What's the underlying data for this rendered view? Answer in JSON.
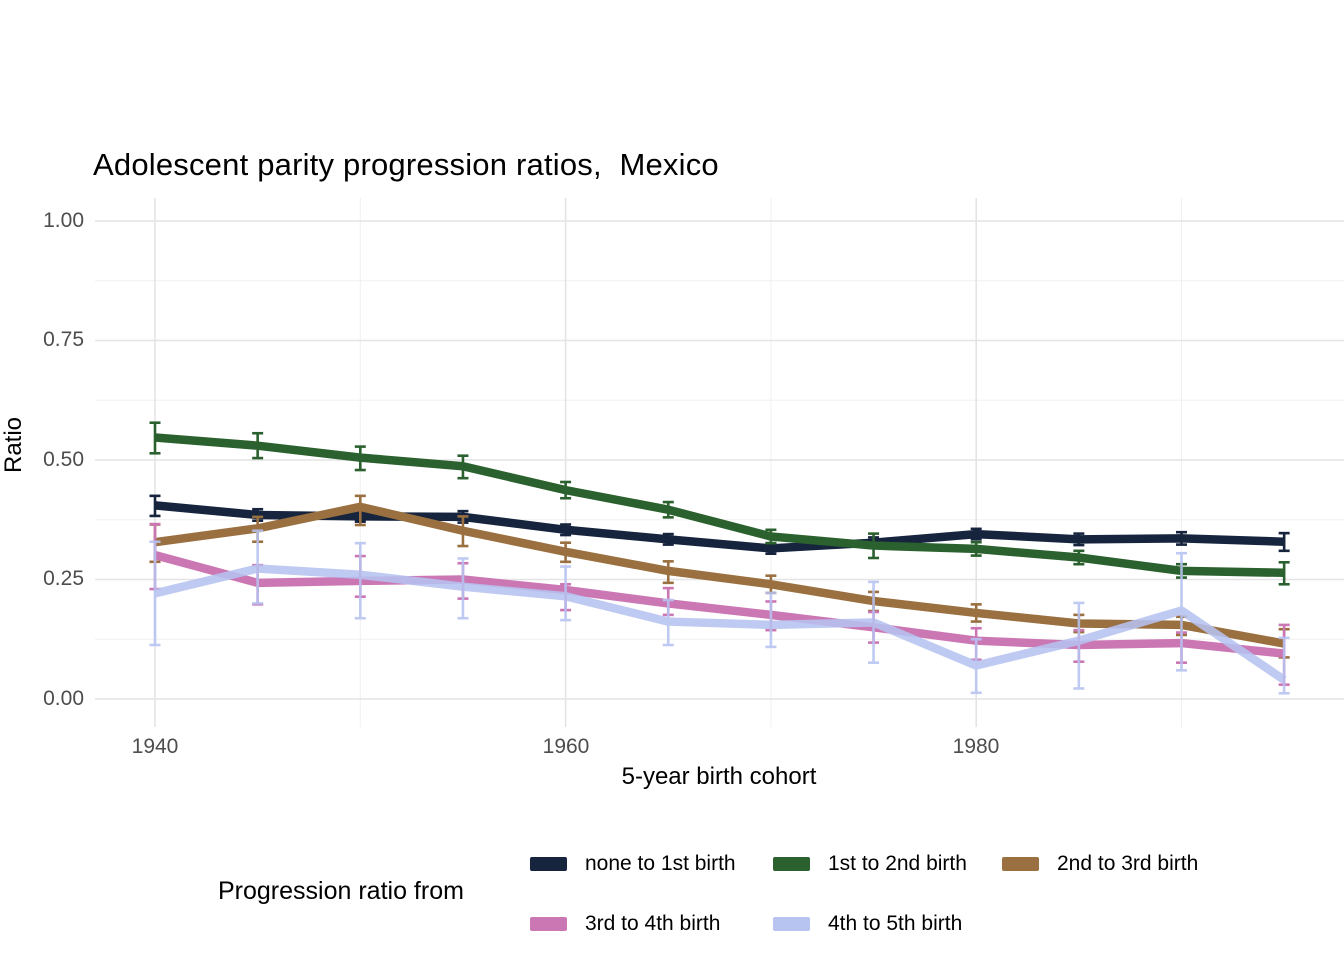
{
  "title": "Adolescent parity progression ratios,  Mexico",
  "y_axis": {
    "label": "Ratio",
    "ticks": [
      "1.00",
      "0.75",
      "0.50",
      "0.25",
      "0.00"
    ]
  },
  "x_axis": {
    "label": "5-year birth cohort",
    "ticks": [
      "1940",
      "1960",
      "1980"
    ]
  },
  "legend": {
    "title": "Progression ratio from",
    "items": [
      {
        "label": "none to 1st birth",
        "color": "#16243e"
      },
      {
        "label": "1st to 2nd birth",
        "color": "#2b612e"
      },
      {
        "label": "2nd to 3rd birth",
        "color": "#9a7040"
      },
      {
        "label": "3rd to 4th birth",
        "color": "#cb77b4"
      },
      {
        "label": "4th to 5th birth",
        "color": "#b7c3f1"
      }
    ]
  },
  "chart_data": {
    "type": "line",
    "title": "Adolescent parity progression ratios,  Mexico",
    "xlabel": "5-year birth cohort",
    "ylabel": "Ratio",
    "x": [
      1940,
      1945,
      1950,
      1955,
      1960,
      1965,
      1970,
      1975,
      1980,
      1985,
      1990,
      1995
    ],
    "xlim": [
      1937,
      1998
    ],
    "ylim": [
      0,
      1
    ],
    "y_major_ticks": [
      0,
      0.25,
      0.5,
      0.75,
      1.0
    ],
    "y_minor_ticks": [
      0.125,
      0.375,
      0.625,
      0.875
    ],
    "x_major_ticks": [
      1940,
      1960,
      1980
    ],
    "x_minor_ticks": [
      1950,
      1970,
      1990
    ],
    "grid": true,
    "error_bars": true,
    "legend_position": "bottom",
    "series": [
      {
        "name": "none to 1st birth",
        "color": "#16243e",
        "opacity": 1,
        "values": [
          0.405,
          0.385,
          0.382,
          0.381,
          0.354,
          0.334,
          0.315,
          0.327,
          0.345,
          0.334,
          0.336,
          0.329
        ],
        "ci_low": [
          0.383,
          0.373,
          0.371,
          0.369,
          0.343,
          0.323,
          0.304,
          0.316,
          0.334,
          0.322,
          0.323,
          0.31
        ],
        "ci_high": [
          0.425,
          0.397,
          0.393,
          0.393,
          0.365,
          0.345,
          0.326,
          0.338,
          0.356,
          0.346,
          0.349,
          0.347
        ]
      },
      {
        "name": "1st to 2nd birth",
        "color": "#2b612e",
        "opacity": 1,
        "values": [
          0.547,
          0.53,
          0.505,
          0.487,
          0.437,
          0.396,
          0.34,
          0.321,
          0.314,
          0.296,
          0.268,
          0.264
        ],
        "ci_low": [
          0.514,
          0.504,
          0.479,
          0.462,
          0.42,
          0.38,
          0.326,
          0.295,
          0.3,
          0.282,
          0.254,
          0.24
        ],
        "ci_high": [
          0.578,
          0.556,
          0.528,
          0.509,
          0.454,
          0.412,
          0.354,
          0.346,
          0.328,
          0.31,
          0.282,
          0.286
        ]
      },
      {
        "name": "2nd to 3rd birth",
        "color": "#9a7040",
        "opacity": 1,
        "values": [
          0.328,
          0.357,
          0.402,
          0.352,
          0.308,
          0.268,
          0.24,
          0.205,
          0.18,
          0.158,
          0.155,
          0.116
        ],
        "ci_low": [
          0.287,
          0.329,
          0.364,
          0.32,
          0.287,
          0.243,
          0.222,
          0.184,
          0.162,
          0.14,
          0.134,
          0.087
        ],
        "ci_high": [
          0.365,
          0.381,
          0.425,
          0.382,
          0.327,
          0.288,
          0.258,
          0.224,
          0.198,
          0.176,
          0.172,
          0.146
        ]
      },
      {
        "name": "3rd to 4th birth",
        "color": "#cb77b4",
        "opacity": 1,
        "values": [
          0.301,
          0.243,
          0.247,
          0.25,
          0.228,
          0.2,
          0.176,
          0.15,
          0.122,
          0.113,
          0.117,
          0.095
        ],
        "ci_low": [
          0.23,
          0.198,
          0.214,
          0.21,
          0.186,
          0.176,
          0.144,
          0.118,
          0.082,
          0.078,
          0.076,
          0.03
        ],
        "ci_high": [
          0.366,
          0.28,
          0.299,
          0.284,
          0.24,
          0.232,
          0.204,
          0.182,
          0.148,
          0.144,
          0.139,
          0.155
        ]
      },
      {
        "name": "4th to 5th birth",
        "color": "#b7c3f1",
        "opacity": 0.88,
        "values": [
          0.221,
          0.273,
          0.26,
          0.235,
          0.215,
          0.162,
          0.155,
          0.16,
          0.07,
          0.122,
          0.185,
          0.04
        ],
        "ci_low": [
          0.113,
          0.2,
          0.169,
          0.169,
          0.165,
          0.113,
          0.109,
          0.076,
          0.013,
          0.022,
          0.06,
          0.012
        ],
        "ci_high": [
          0.329,
          0.352,
          0.326,
          0.294,
          0.277,
          0.207,
          0.222,
          0.245,
          0.125,
          0.201,
          0.305,
          0.128
        ]
      }
    ]
  },
  "layout_hints": {
    "grid_major_color": "#e4e4e4",
    "grid_minor_color": "#f0f0f0",
    "tick_text_color": "#4d4d4d"
  }
}
